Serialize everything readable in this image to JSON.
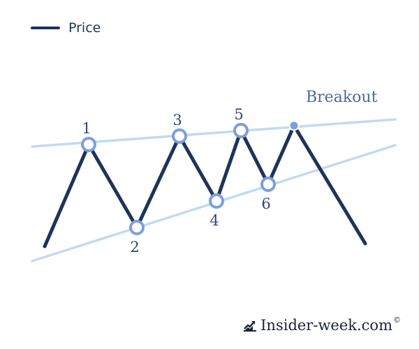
{
  "legend": {
    "label": "Price"
  },
  "brand": {
    "label": "Insider-week.com",
    "copyright": "©",
    "icon": "trend-chart-icon"
  },
  "colors": {
    "price_line": "#1f3358",
    "trendline": "#c3daf0",
    "marker_stroke": "#7d9fdc",
    "label_text": "#2d4678",
    "breakout_text": "#4a6a9a"
  },
  "chart_data": {
    "type": "line",
    "title": "",
    "xlabel": "",
    "ylabel": "",
    "xlim": [
      0,
      600
    ],
    "ylim": [
      0,
      500
    ],
    "series": [
      {
        "name": "Price",
        "values": [
          {
            "x": 64,
            "y": 147
          },
          {
            "x": 127,
            "y": 293
          },
          {
            "x": 196,
            "y": 174
          },
          {
            "x": 257,
            "y": 305
          },
          {
            "x": 310,
            "y": 212
          },
          {
            "x": 345,
            "y": 313
          },
          {
            "x": 384,
            "y": 236
          },
          {
            "x": 421,
            "y": 320
          },
          {
            "x": 523,
            "y": 151
          }
        ]
      }
    ],
    "trendlines": [
      {
        "from": {
          "x": 46,
          "y": 290
        },
        "to": {
          "x": 566,
          "y": 329
        }
      },
      {
        "from": {
          "x": 46,
          "y": 126
        },
        "to": {
          "x": 566,
          "y": 292
        }
      }
    ],
    "annotations": [
      {
        "label": "1",
        "x": 127,
        "y": 293,
        "position": "above"
      },
      {
        "label": "2",
        "x": 196,
        "y": 174,
        "position": "below"
      },
      {
        "label": "3",
        "x": 257,
        "y": 305,
        "position": "above"
      },
      {
        "label": "4",
        "x": 310,
        "y": 212,
        "position": "below"
      },
      {
        "label": "5",
        "x": 345,
        "y": 313,
        "position": "above"
      },
      {
        "label": "6",
        "x": 384,
        "y": 236,
        "position": "below"
      }
    ],
    "breakout": {
      "label": "Breakout",
      "x": 421,
      "y": 320
    }
  }
}
